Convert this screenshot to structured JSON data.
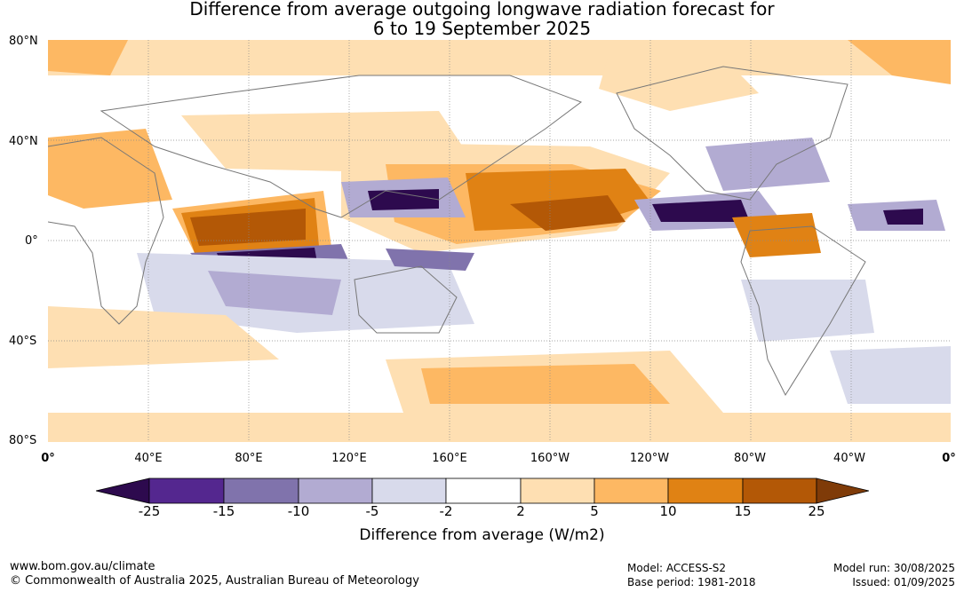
{
  "title_line1": "Difference from average outgoing longwave radiation forecast for",
  "title_line2": "6 to 19 September 2025",
  "lat_labels": [
    "80°N",
    "40°N",
    "0°",
    "40°S",
    "80°S"
  ],
  "lon_labels": [
    "0°",
    "40°E",
    "80°E",
    "120°E",
    "160°E",
    "160°W",
    "120°W",
    "80°W",
    "40°W",
    "0°"
  ],
  "colorbar": {
    "label": "Difference from average (W/m2)",
    "ticks": [
      "-25",
      "-15",
      "-10",
      "-5",
      "-2",
      "2",
      "5",
      "10",
      "15",
      "25"
    ],
    "colors": [
      "#2d0a4e",
      "#54278f",
      "#8073ac",
      "#b2abd2",
      "#d8daeb",
      "#ffffff",
      "#fedfb2",
      "#fdb863",
      "#e08214",
      "#b35806",
      "#7f3b08"
    ]
  },
  "footer": {
    "url": "www.bom.gov.au/climate",
    "copyright": "© Commonwealth of Australia 2025, Australian Bureau of Meteorology",
    "model": "Model: ACCESS-S2",
    "base_period": "Base period: 1981-2018",
    "model_run": "Model run: 30/08/2025",
    "issued": "Issued: 01/09/2025"
  }
}
